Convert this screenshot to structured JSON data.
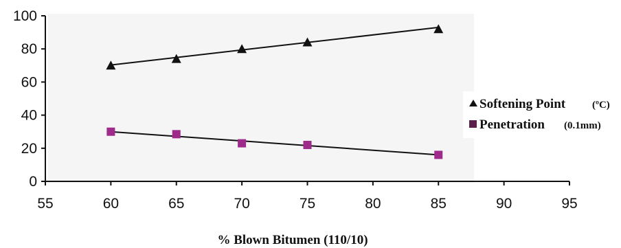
{
  "chart_data": {
    "type": "scatter",
    "title": "",
    "xlabel": "% Blown Bitumen (110/10)",
    "ylabel": "",
    "xlim": [
      55,
      95
    ],
    "ylim": [
      0,
      100
    ],
    "xticks": [
      "55",
      "60",
      "65",
      "70",
      "75",
      "80",
      "85",
      "90",
      "95"
    ],
    "yticks": [
      "0",
      "20",
      "40",
      "60",
      "80",
      "100"
    ],
    "grid": false,
    "legend_position": "right",
    "series": [
      {
        "name": "Softening Point",
        "unit": "(ºC)",
        "marker": "triangle",
        "color": "#111111",
        "x": [
          60,
          65,
          70,
          75,
          85
        ],
        "y": [
          70,
          74,
          80,
          84,
          92
        ],
        "trendline": [
          [
            60,
            70.3
          ],
          [
            85,
            93
          ]
        ]
      },
      {
        "name": "Penetration",
        "unit": "(0.1mm)",
        "marker": "square",
        "color": "#9e2a8a",
        "x": [
          60,
          65,
          70,
          75,
          85
        ],
        "y": [
          30,
          28.5,
          23,
          22,
          16
        ],
        "trendline": [
          [
            60,
            30
          ],
          [
            85,
            16
          ]
        ]
      }
    ]
  },
  "colors": {
    "plot_background": "#f5f5f5",
    "axis": "#111111",
    "penetration_marker": "#9e2a8a",
    "legend_square": "#5a1f4a"
  }
}
